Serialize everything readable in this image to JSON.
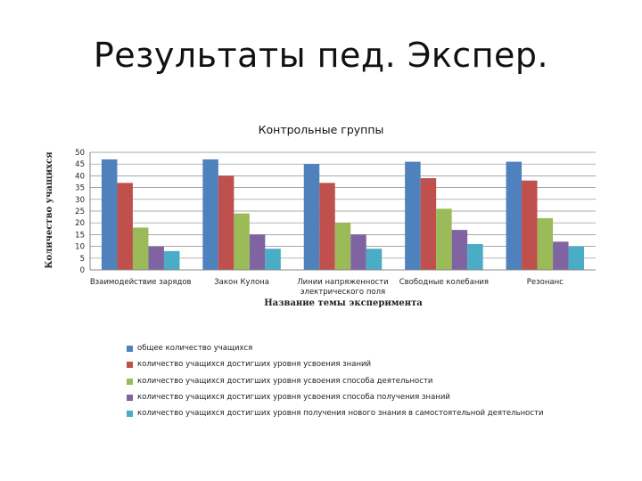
{
  "slide": {
    "title": "Результаты пед. Экспер."
  },
  "colors": [
    "#4F81BD",
    "#C0504D",
    "#9BBB59",
    "#8064A2",
    "#4BACC6"
  ],
  "chart_data": {
    "type": "bar",
    "title": "Контрольные группы",
    "xlabel": "Название темы эксперимента",
    "ylabel": "Количество учащихся",
    "ylim": [
      0,
      50
    ],
    "ytick_step": 5,
    "yticks": [
      "0",
      "5",
      "10",
      "15",
      "20",
      "25",
      "30",
      "35",
      "40",
      "45",
      "50"
    ],
    "grid": true,
    "legend_position": "bottom",
    "categories": [
      [
        "Взаимодействие зарядов"
      ],
      [
        "Закон Кулона"
      ],
      [
        "Линии напряженности",
        "электрического поля"
      ],
      [
        "Свободные колебания"
      ],
      [
        "Резонанс"
      ]
    ],
    "series": [
      {
        "name": "общее количество учащихся",
        "values": [
          47,
          47,
          45,
          46,
          46
        ]
      },
      {
        "name": "количество учащихся достигших уровня усвоения знаний",
        "values": [
          37,
          40,
          37,
          39,
          38
        ]
      },
      {
        "name": " количество учащихся достигших уровня усвоения способа деятельности",
        "values": [
          18,
          24,
          20,
          26,
          22
        ]
      },
      {
        "name": "количество учащихся достигших уровня усвоения способа получения знаний",
        "values": [
          10,
          15,
          15,
          17,
          12
        ]
      },
      {
        "name": "количество учащихся достигших уровня получения нового знания в самостоятельной деятельности",
        "values": [
          8,
          9,
          9,
          11,
          10
        ]
      }
    ]
  }
}
